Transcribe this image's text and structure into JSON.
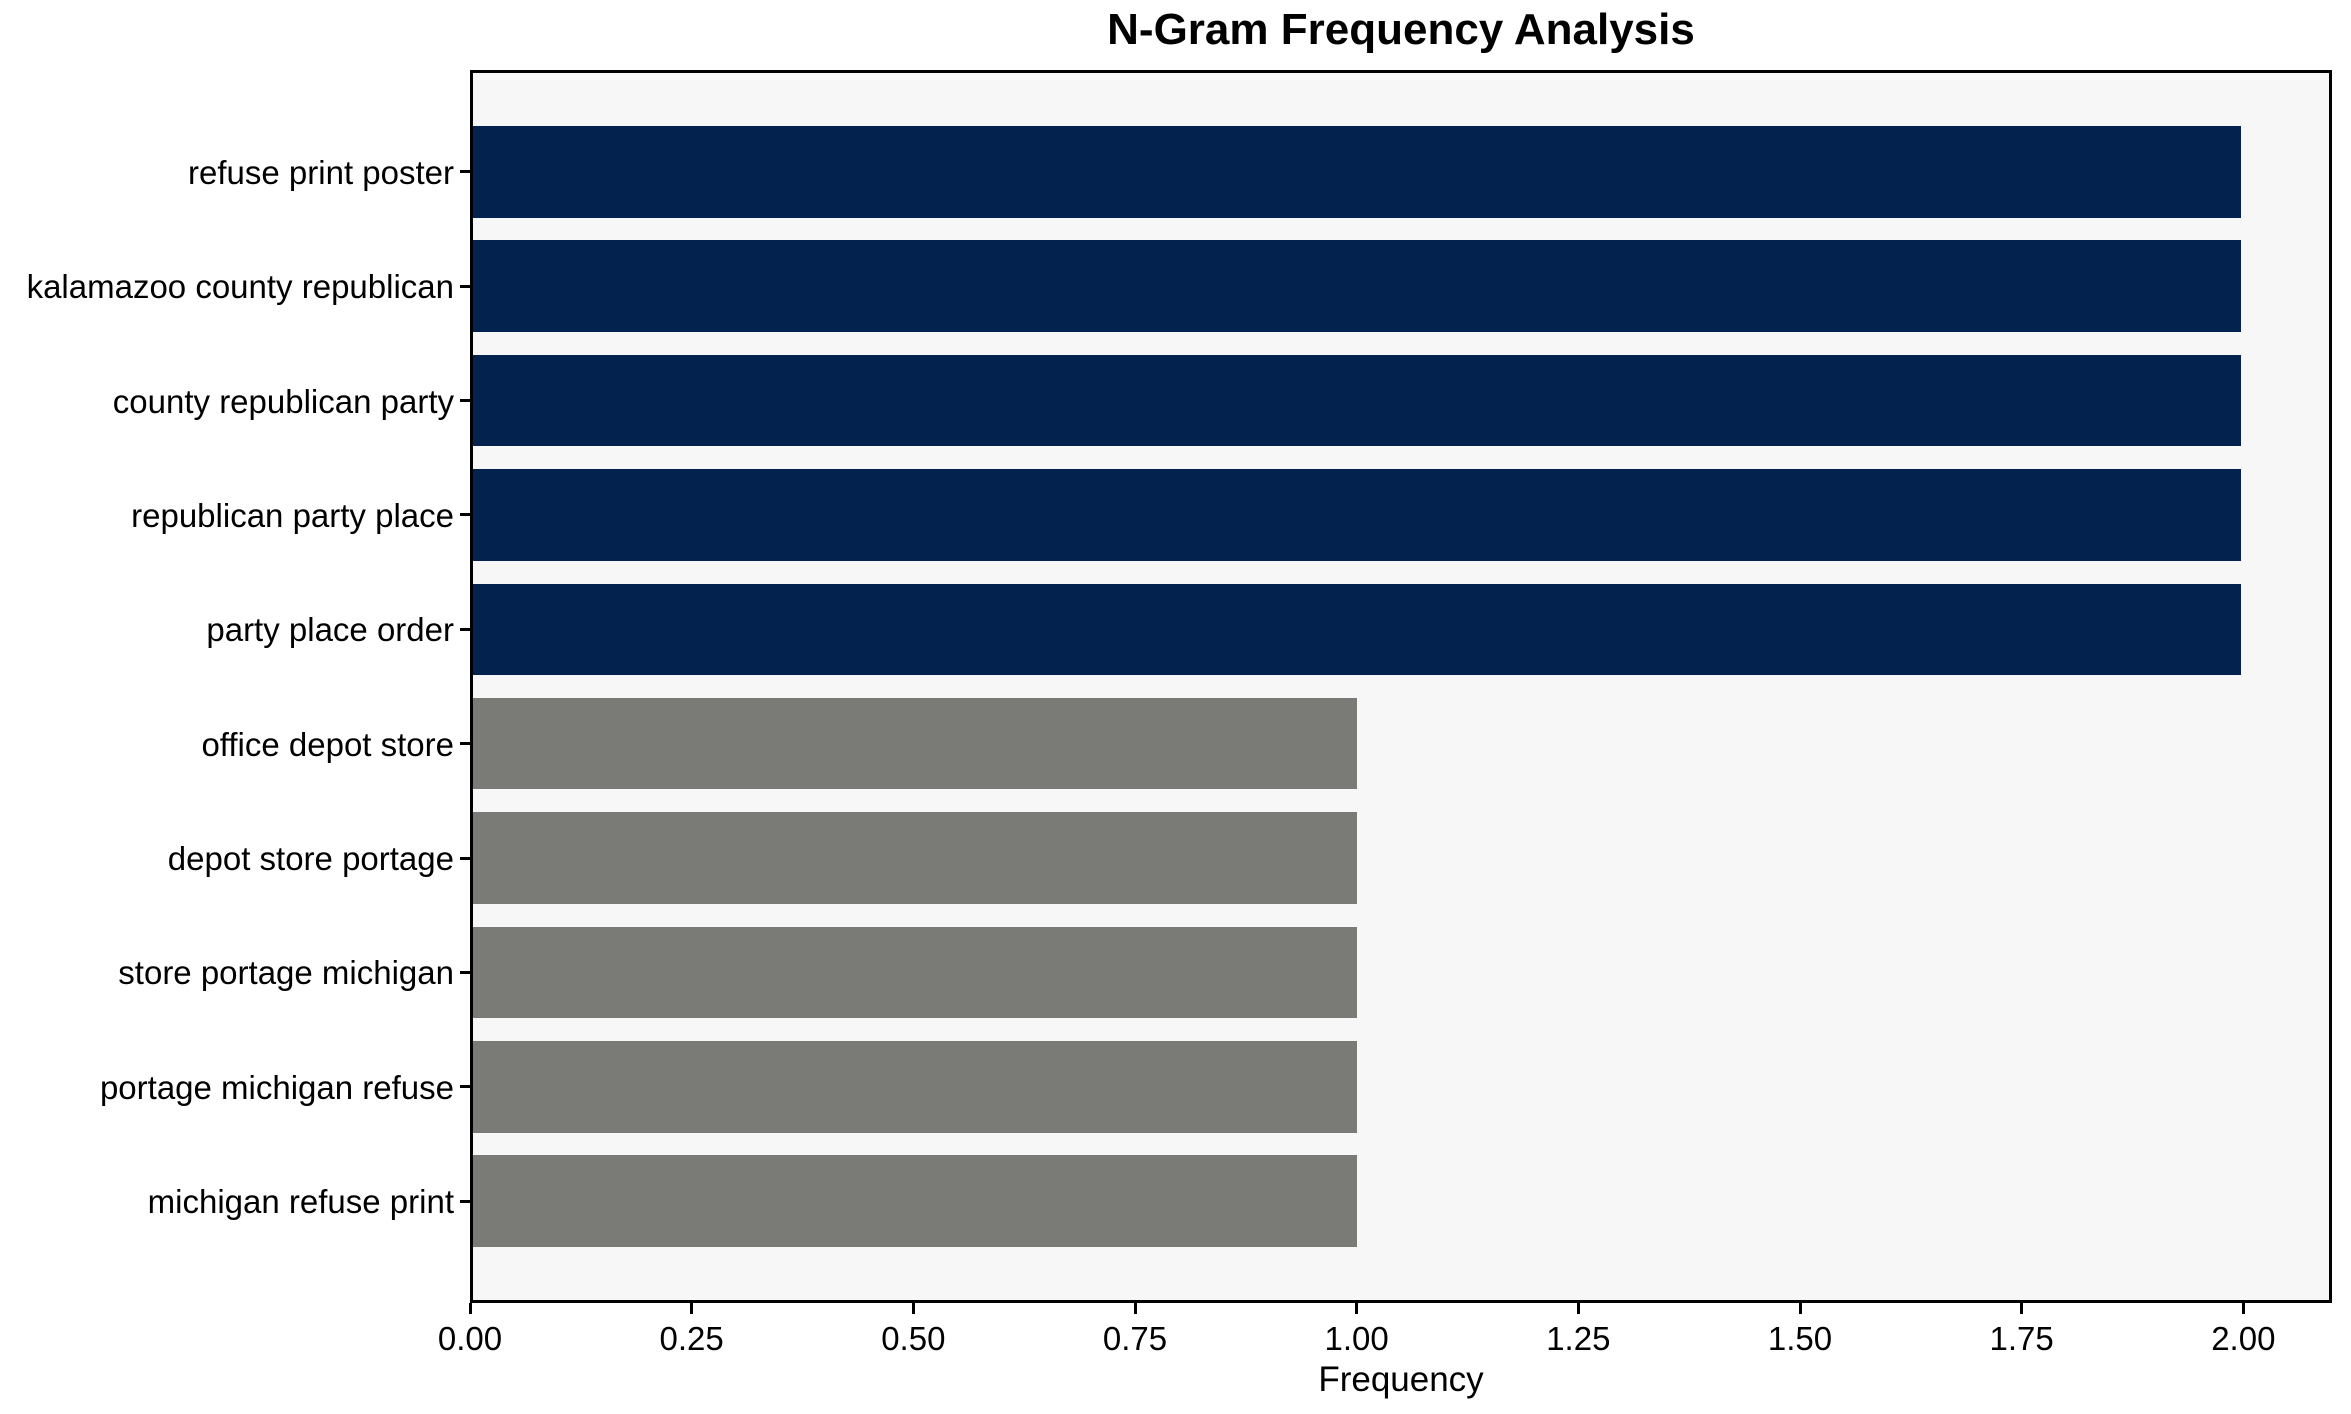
{
  "chart_data": {
    "type": "bar",
    "orientation": "horizontal",
    "title": "N-Gram Frequency Analysis",
    "xlabel": "Frequency",
    "ylabel": "",
    "categories": [
      "refuse print poster",
      "kalamazoo county republican",
      "county republican party",
      "republican party place",
      "party place order",
      "office depot store",
      "depot store portage",
      "store portage michigan",
      "portage michigan refuse",
      "michigan refuse print"
    ],
    "values": [
      2,
      2,
      2,
      2,
      2,
      1,
      1,
      1,
      1,
      1
    ],
    "bar_colors": [
      "#03234E",
      "#03234E",
      "#03234E",
      "#03234E",
      "#03234E",
      "#7A7A76",
      "#7A7A76",
      "#7A7A76",
      "#7A7A76",
      "#7A7A76"
    ],
    "xlim": [
      0,
      2.1
    ],
    "x_ticks": [
      0,
      0.25,
      0.5,
      0.75,
      1.0,
      1.25,
      1.5,
      1.75,
      2.0
    ],
    "x_tick_labels": [
      "0.00",
      "0.25",
      "0.50",
      "0.75",
      "1.00",
      "1.25",
      "1.50",
      "1.75",
      "2.00"
    ],
    "bar_band_fraction": 0.8,
    "grid": false,
    "legend": "none"
  },
  "colors": {
    "highlight_bar": "#03234E",
    "muted_bar": "#7A7A76",
    "plot_background": "#F7F7F7",
    "figure_background": "#FFFFFF",
    "axis": "#000000",
    "text": "#000000"
  }
}
